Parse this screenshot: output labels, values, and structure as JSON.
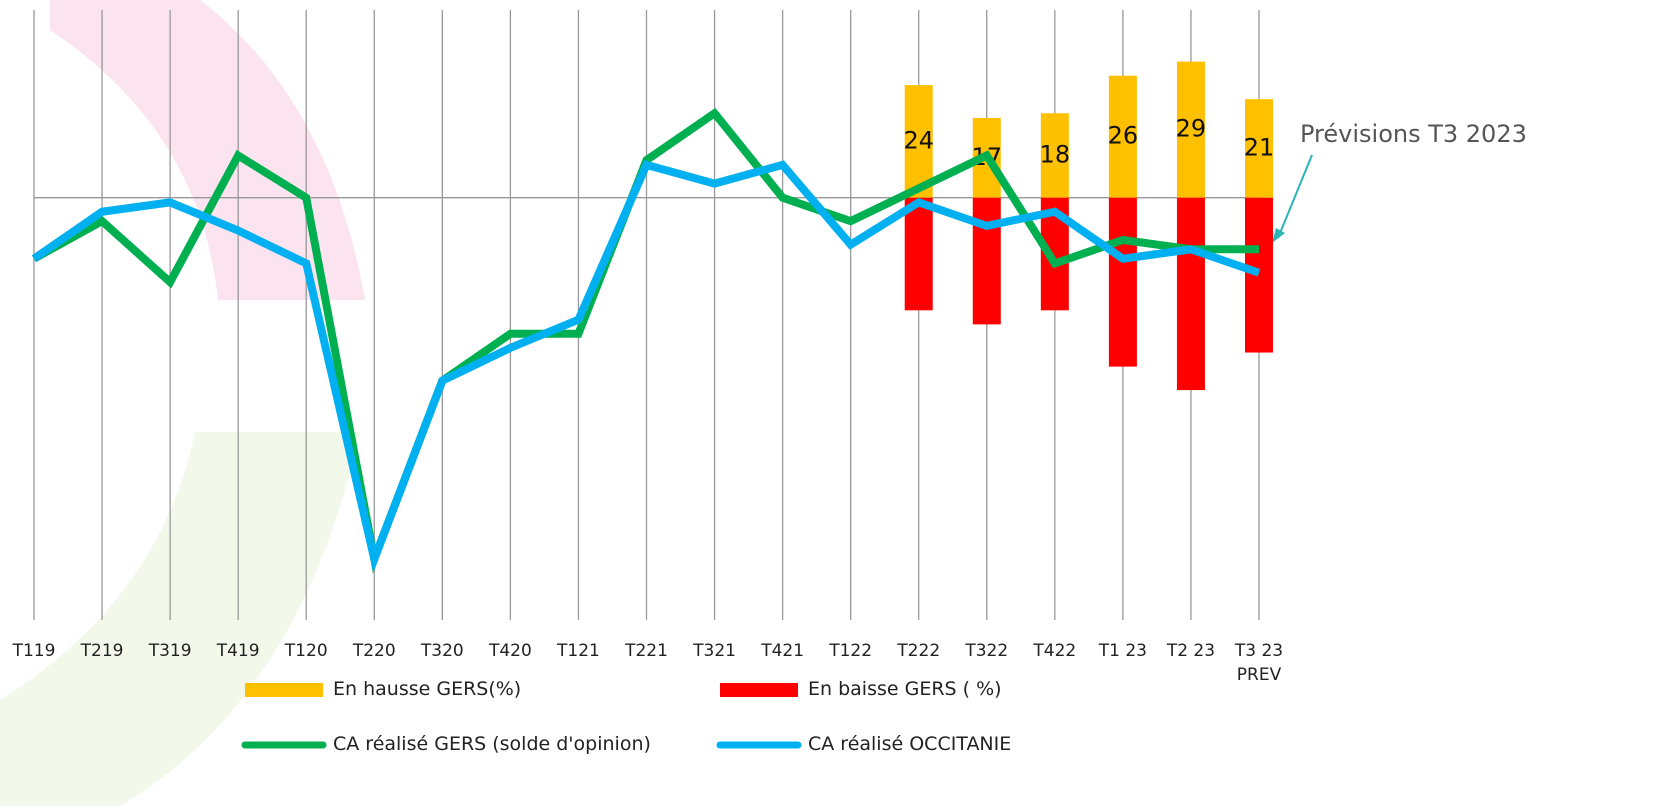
{
  "chart_data": {
    "type": "combo",
    "categories": [
      "T119",
      "T219",
      "T319",
      "T419",
      "T120",
      "T220",
      "T320",
      "T420",
      "T121",
      "T221",
      "T321",
      "T421",
      "T122",
      "T222",
      "T322",
      "T422",
      "T1 23",
      "T2 23",
      "T3 23\nPREV"
    ],
    "ylim": [
      -90,
      40
    ],
    "grid": true,
    "series": [
      {
        "name": "En hausse  GERS(%)",
        "type": "bar",
        "color": "#FFC000",
        "values": [
          null,
          null,
          null,
          null,
          null,
          null,
          null,
          null,
          null,
          null,
          null,
          null,
          null,
          24,
          17,
          18,
          26,
          29,
          21
        ]
      },
      {
        "name": "En baisse GERS ( %)",
        "type": "bar",
        "color": "#FF0000",
        "values": [
          null,
          null,
          null,
          null,
          null,
          null,
          null,
          null,
          null,
          null,
          null,
          null,
          null,
          -24,
          -27,
          -24,
          -36,
          -41,
          -33
        ]
      },
      {
        "name": "CA réalisé GERS  (solde d'opinion)",
        "type": "line",
        "color": "#00B050",
        "values": [
          -13,
          -5,
          -18,
          9,
          0,
          -77,
          -39,
          -29,
          -29,
          8,
          18,
          0,
          -5,
          2,
          9,
          -14,
          -9,
          -11,
          -11
        ]
      },
      {
        "name": "CA réalisé OCCITANIE",
        "type": "line",
        "color": "#00B0F0",
        "values": [
          -13,
          -3,
          -1,
          -7,
          -14,
          -77,
          -39,
          -32,
          -26,
          7,
          3,
          7,
          -10,
          -1,
          -6,
          -3,
          -13,
          -11,
          -16
        ]
      }
    ],
    "annotation": "Prévisions T3 2023"
  }
}
